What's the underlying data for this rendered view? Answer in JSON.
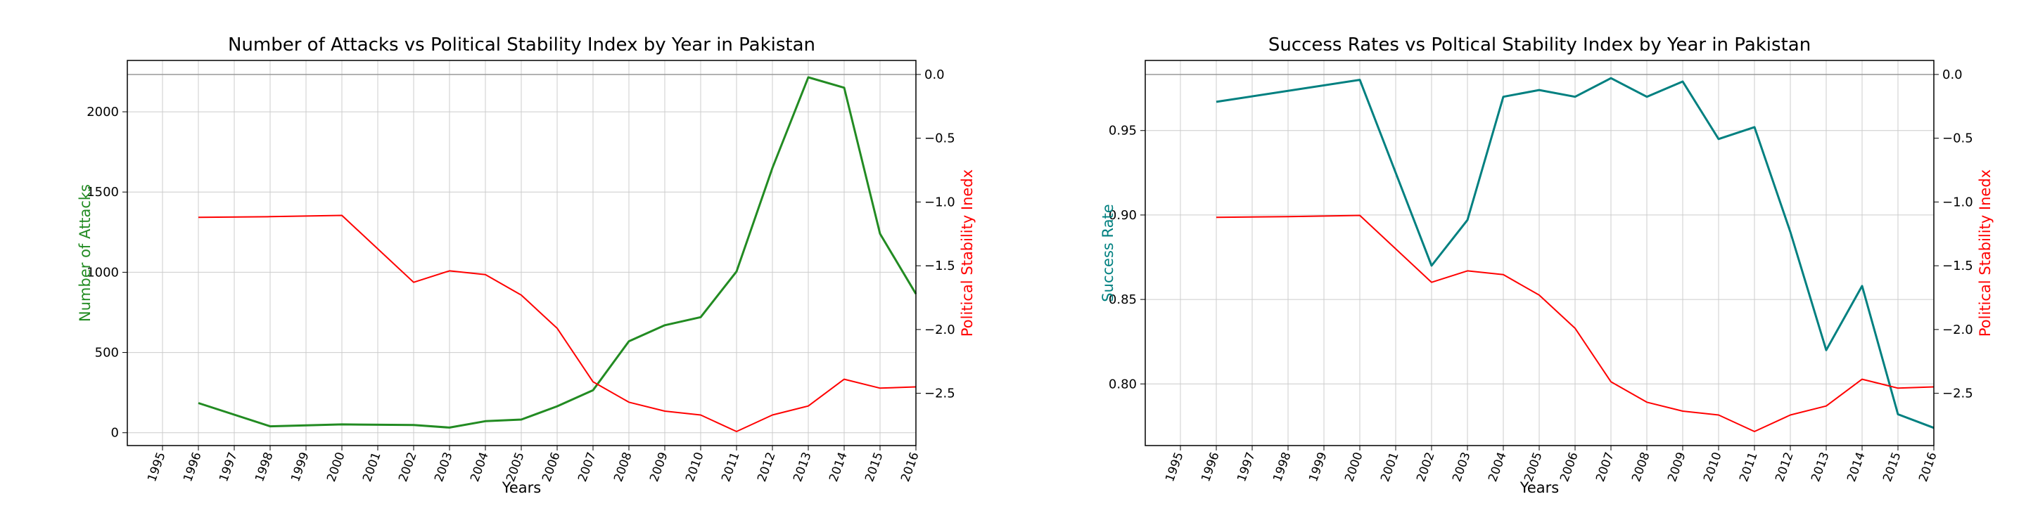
{
  "colors": {
    "attacks": "#228B22",
    "success": "#008080",
    "stability": "#FF0000",
    "grid": "#cccccc",
    "axis": "#000000"
  },
  "chart_data": [
    {
      "type": "line",
      "title": "Number of Attacks vs Political Stability Index by Year in Pakistan",
      "xlabel": "Years",
      "ylabel": "Number of Attacks",
      "y2label": "Political Stability Inedx",
      "xlim": [
        1995,
        2016
      ],
      "xticks": [
        "1995",
        "1996",
        "1997",
        "1998",
        "1999",
        "2000",
        "2001",
        "2002",
        "2003",
        "2004",
        "2005",
        "2006",
        "2007",
        "2008",
        "2009",
        "2010",
        "2011",
        "2012",
        "2013",
        "2014",
        "2015",
        "2016"
      ],
      "ylim": [
        -80,
        2320
      ],
      "yticks": [
        "0",
        "500",
        "1000",
        "1500",
        "2000"
      ],
      "y2lim": [
        -2.91,
        0.11
      ],
      "y2ticks": [
        "0.0",
        "−0.5",
        "−1.0",
        "−1.5",
        "−2.0",
        "−2.5"
      ],
      "grid": true,
      "series": [
        {
          "axis": "left",
          "color_key": "attacks",
          "x": [
            1996,
            1998,
            2000,
            2002,
            2003,
            2004,
            2005,
            2006,
            2007,
            2008,
            2009,
            2010,
            2011,
            2012,
            2013,
            2014,
            2015,
            2016
          ],
          "values": [
            185,
            40,
            52,
            48,
            32,
            72,
            82,
            165,
            265,
            570,
            670,
            720,
            1005,
            1650,
            2215,
            2150,
            1240,
            865
          ]
        },
        {
          "axis": "right",
          "color_key": "stability",
          "x": [
            1996,
            1998,
            2000,
            2002,
            2003,
            2004,
            2005,
            2006,
            2007,
            2008,
            2009,
            2010,
            2011,
            2012,
            2013,
            2014,
            2015,
            2016
          ],
          "values": [
            -1.12,
            -1.115,
            -1.105,
            -1.63,
            -1.54,
            -1.57,
            -1.73,
            -1.99,
            -2.41,
            -2.57,
            -2.64,
            -2.67,
            -2.8,
            -2.67,
            -2.6,
            -2.39,
            -2.46,
            -2.45
          ]
        }
      ]
    },
    {
      "type": "line",
      "title": "Success Rates vs Poltical Stability Index by Year in Pakistan",
      "xlabel": "Years",
      "ylabel": "Success Rate",
      "y2label": "Political Stability Inedx",
      "xlim": [
        1995,
        2016
      ],
      "xticks": [
        "1995",
        "1996",
        "1997",
        "1998",
        "1999",
        "2000",
        "2001",
        "2002",
        "2003",
        "2004",
        "2005",
        "2006",
        "2007",
        "2008",
        "2009",
        "2010",
        "2011",
        "2012",
        "2013",
        "2014",
        "2015",
        "2016"
      ],
      "ylim": [
        0.7635,
        0.9915
      ],
      "yticks": [
        "0.80",
        "0.85",
        "0.90",
        "0.95"
      ],
      "y2lim": [
        -2.91,
        0.11
      ],
      "y2ticks": [
        "0.0",
        "−0.5",
        "−1.0",
        "−1.5",
        "−2.0",
        "−2.5"
      ],
      "grid": true,
      "series": [
        {
          "axis": "left",
          "color_key": "success",
          "x": [
            1996,
            2000,
            2002,
            2003,
            2004,
            2005,
            2006,
            2007,
            2008,
            2009,
            2010,
            2011,
            2012,
            2013,
            2014,
            2015,
            2016
          ],
          "values": [
            0.967,
            0.98,
            0.87,
            0.897,
            0.97,
            0.974,
            0.97,
            0.981,
            0.97,
            0.979,
            0.945,
            0.952,
            0.89,
            0.82,
            0.858,
            0.782,
            0.774
          ]
        },
        {
          "axis": "right",
          "color_key": "stability",
          "x": [
            1996,
            1998,
            2000,
            2002,
            2003,
            2004,
            2005,
            2006,
            2007,
            2008,
            2009,
            2010,
            2011,
            2012,
            2013,
            2014,
            2015,
            2016
          ],
          "values": [
            -1.12,
            -1.115,
            -1.105,
            -1.63,
            -1.54,
            -1.57,
            -1.73,
            -1.99,
            -2.41,
            -2.57,
            -2.64,
            -2.67,
            -2.8,
            -2.67,
            -2.6,
            -2.39,
            -2.46,
            -2.45
          ]
        }
      ]
    }
  ]
}
